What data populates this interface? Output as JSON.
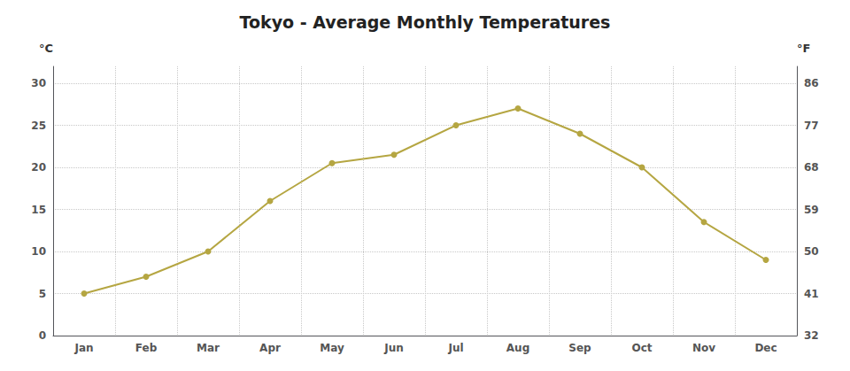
{
  "chart_data": {
    "type": "line",
    "title": "Tokyo - Average Monthly Temperatures",
    "categories": [
      "Jan",
      "Feb",
      "Mar",
      "Apr",
      "May",
      "Jun",
      "Jul",
      "Aug",
      "Sep",
      "Oct",
      "Nov",
      "Dec"
    ],
    "values": [
      5,
      7,
      10,
      16,
      20.5,
      21.5,
      25,
      27,
      24,
      20,
      13.5,
      9
    ],
    "color": "#b5a642",
    "marker": "circle",
    "ylabel": "°C",
    "y2label": "°F",
    "ylim": [
      0,
      32
    ],
    "yticks": [
      0,
      5,
      10,
      15,
      20,
      25,
      30
    ],
    "y2lim": [
      32,
      89.6
    ],
    "y2ticks": [
      32,
      41,
      50,
      59,
      68,
      77,
      86
    ],
    "grid": true
  }
}
